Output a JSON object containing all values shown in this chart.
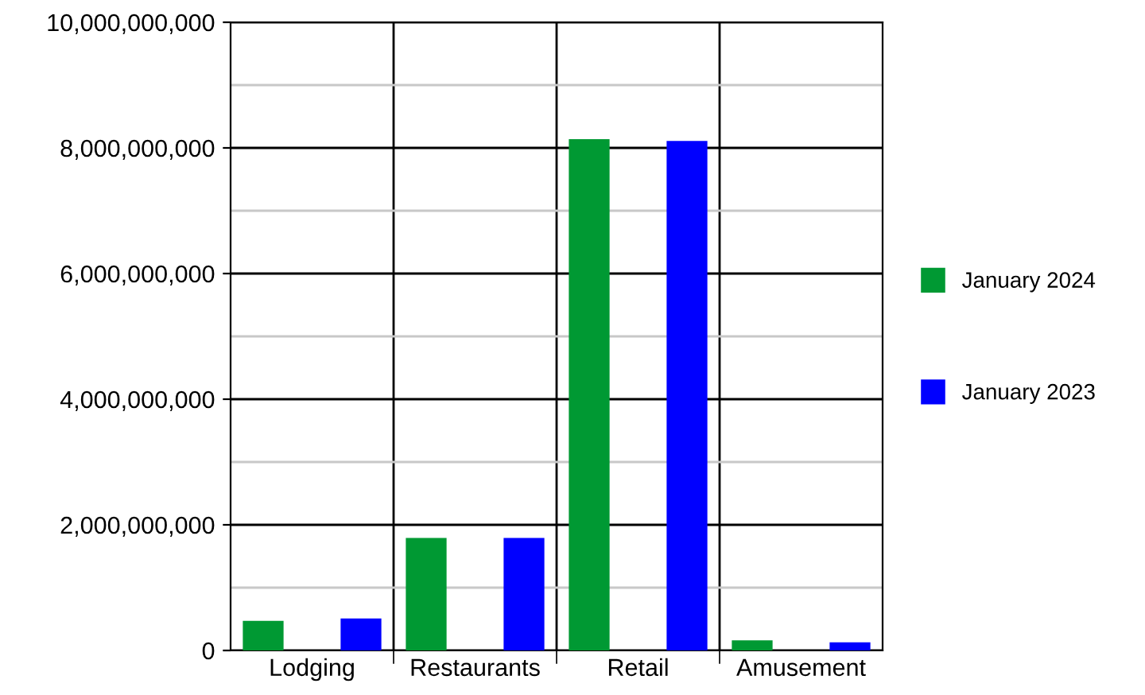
{
  "chart_data": {
    "type": "bar",
    "categories": [
      "Lodging",
      "Restaurants",
      "Retail",
      "Amusement"
    ],
    "series": [
      {
        "name": "January 2024",
        "color": "#009933",
        "values": [
          470000000,
          1790000000,
          8140000000,
          160000000
        ]
      },
      {
        "name": "January 2023",
        "color": "#0000ff",
        "values": [
          510000000,
          1790000000,
          8110000000,
          130000000
        ]
      }
    ],
    "ylim": [
      0,
      10000000000
    ],
    "yticks": [
      {
        "value": 0,
        "label": "0"
      },
      {
        "value": 2000000000,
        "label": "2,000,000,000"
      },
      {
        "value": 4000000000,
        "label": "4,000,000,000"
      },
      {
        "value": 6000000000,
        "label": "6,000,000,000"
      },
      {
        "value": 8000000000,
        "label": "8,000,000,000"
      },
      {
        "value": 10000000000,
        "label": "10,000,000,000"
      }
    ],
    "grid": true,
    "legend": "right"
  }
}
